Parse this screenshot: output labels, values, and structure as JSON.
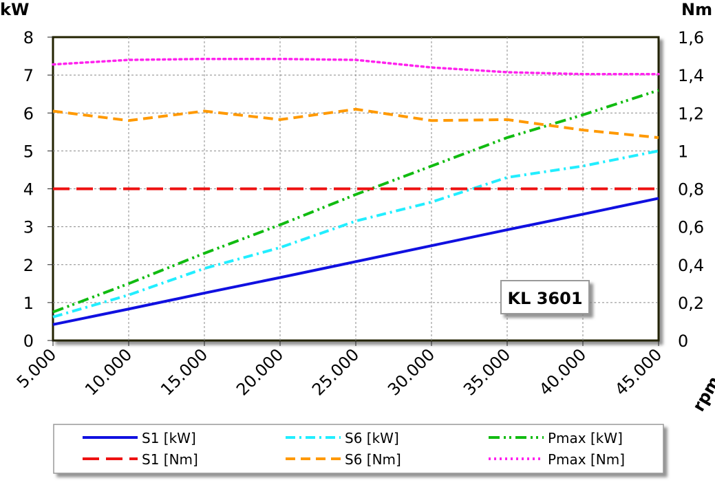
{
  "chart_data": {
    "type": "line",
    "annotation": "KL 3601",
    "ylabel_left": "kW",
    "ylabel_right": "Nm",
    "xlabel": "rpm",
    "x": [
      5000,
      10000,
      15000,
      20000,
      25000,
      30000,
      35000,
      40000,
      45000
    ],
    "xtick_labels": [
      "5.000",
      "10.000",
      "15.000",
      "20.000",
      "25.000",
      "30.000",
      "35.000",
      "40.000",
      "45.000"
    ],
    "xlim": [
      5000,
      45000
    ],
    "ylim_left": [
      0,
      8
    ],
    "ylim_right": [
      0,
      1.6
    ],
    "ytick_labels_left": [
      "0",
      "1",
      "2",
      "3",
      "4",
      "5",
      "6",
      "7",
      "8"
    ],
    "ytick_labels_right": [
      "0",
      "0,2",
      "0,4",
      "0,6",
      "0,8",
      "1",
      "1,2",
      "1,4",
      "1,6"
    ],
    "grid": true,
    "legend_position": "bottom",
    "series": [
      {
        "name": "S1 [kW]",
        "axis": "left",
        "color": "#1010e0",
        "style": "solid",
        "values": [
          0.42,
          0.83,
          1.25,
          1.66,
          2.08,
          2.5,
          2.92,
          3.33,
          3.75
        ]
      },
      {
        "name": "S6 [kW]",
        "axis": "left",
        "color": "#22eeff",
        "style": "dashdot",
        "values": [
          0.62,
          1.2,
          1.9,
          2.45,
          3.15,
          3.65,
          4.3,
          4.6,
          5.0
        ]
      },
      {
        "name": "Pmax [kW]",
        "axis": "left",
        "color": "#11bb11",
        "style": "dashdotdot",
        "values": [
          0.75,
          1.5,
          2.3,
          3.05,
          3.85,
          4.6,
          5.35,
          5.95,
          6.6
        ]
      },
      {
        "name": "S1 [Nm]",
        "axis": "right",
        "color": "#ee1111",
        "style": "longdash",
        "values": [
          0.8,
          0.8,
          0.8,
          0.8,
          0.8,
          0.8,
          0.8,
          0.8,
          0.8
        ]
      },
      {
        "name": "S6 [Nm]",
        "axis": "right",
        "color": "#ff9900",
        "style": "dash",
        "values": [
          1.21,
          1.16,
          1.21,
          1.165,
          1.22,
          1.16,
          1.165,
          1.11,
          1.07
        ]
      },
      {
        "name": "Pmax [Nm]",
        "axis": "right",
        "color": "#ff22ee",
        "style": "dot",
        "values": [
          1.456,
          1.48,
          1.485,
          1.485,
          1.48,
          1.44,
          1.415,
          1.405,
          1.405
        ]
      }
    ]
  }
}
